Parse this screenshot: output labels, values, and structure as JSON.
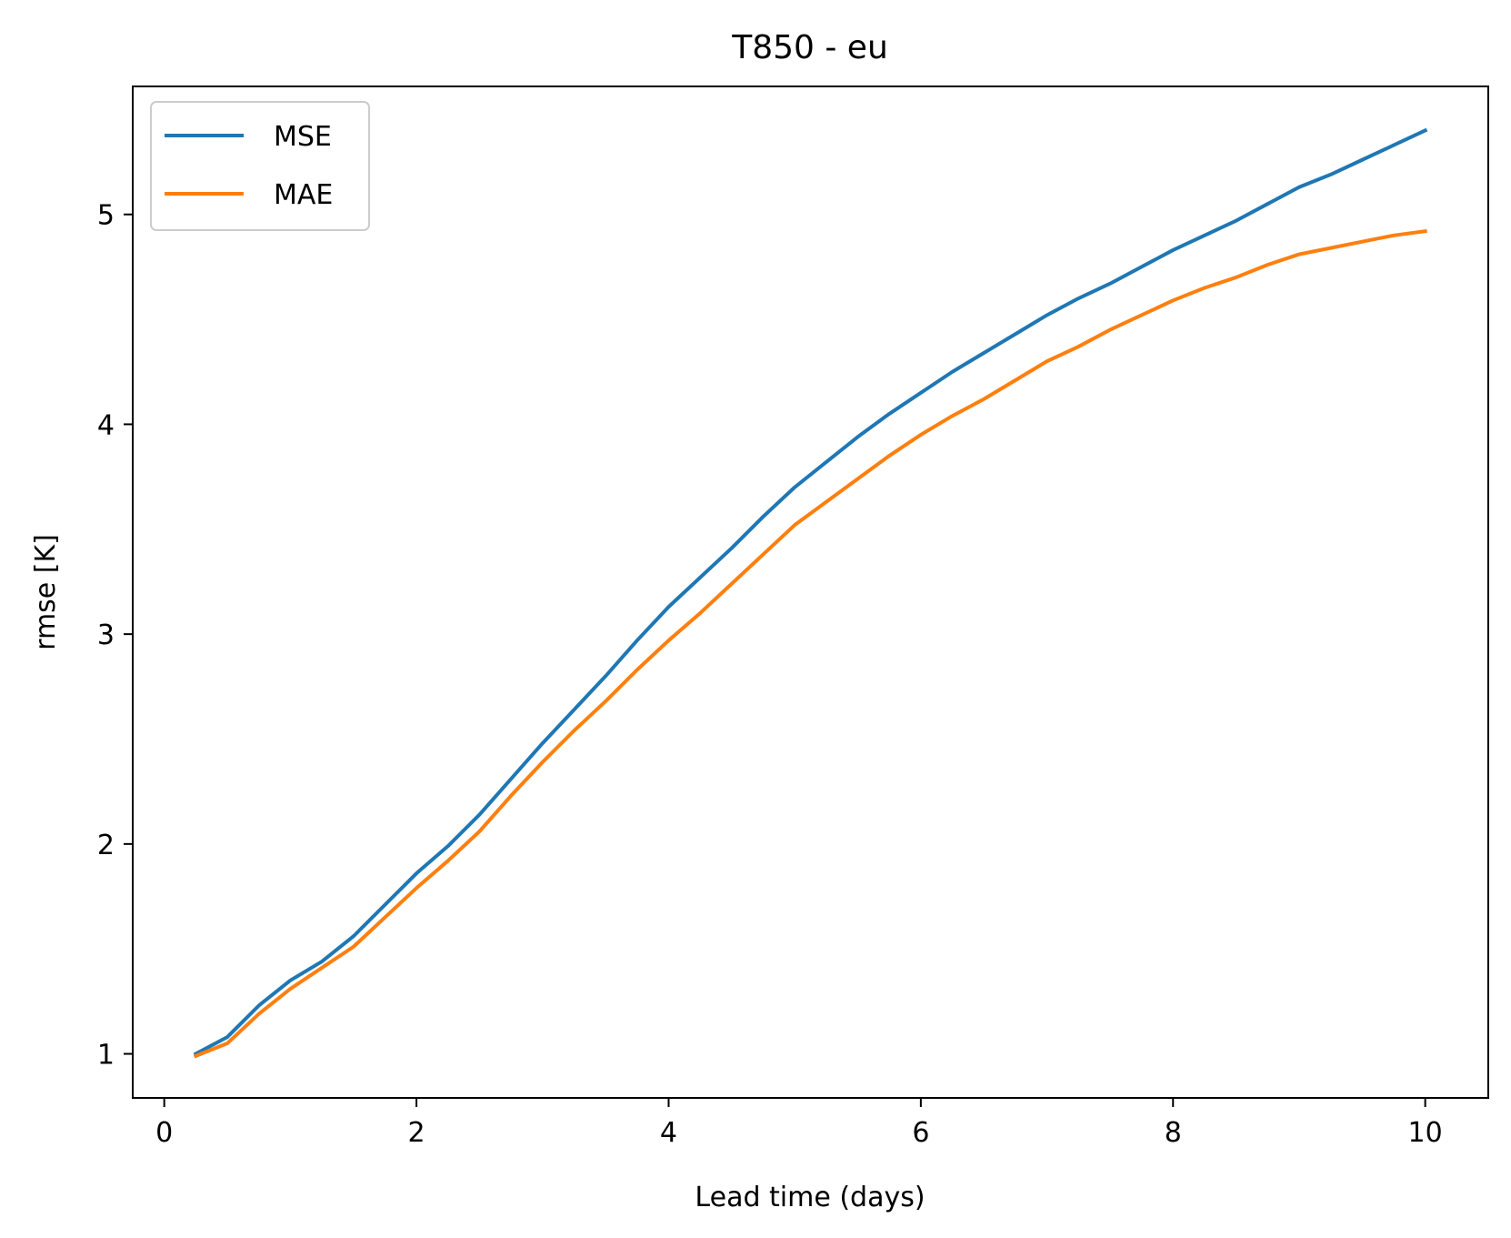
{
  "chart_data": {
    "type": "line",
    "title": "T850 - eu",
    "xlabel": "Lead time (days)",
    "ylabel": "rmse [K]",
    "xlim": [
      -0.25,
      10.5
    ],
    "ylim": [
      0.79,
      5.61
    ],
    "xticks": [
      0,
      2,
      4,
      6,
      8,
      10
    ],
    "yticks": [
      1,
      2,
      3,
      4,
      5
    ],
    "grid": false,
    "legend_position": "top-left",
    "x": [
      0.25,
      0.5,
      0.75,
      1.0,
      1.25,
      1.5,
      1.75,
      2.0,
      2.25,
      2.5,
      2.75,
      3.0,
      3.25,
      3.5,
      3.75,
      4.0,
      4.25,
      4.5,
      4.75,
      5.0,
      5.25,
      5.5,
      5.75,
      6.0,
      6.25,
      6.5,
      6.75,
      7.0,
      7.25,
      7.5,
      7.75,
      8.0,
      8.25,
      8.5,
      8.75,
      9.0,
      9.25,
      9.5,
      9.75,
      10.0
    ],
    "series": [
      {
        "name": "MSE",
        "color": "#1f77b4",
        "values": [
          1.0,
          1.08,
          1.23,
          1.35,
          1.44,
          1.56,
          1.71,
          1.86,
          1.99,
          2.14,
          2.31,
          2.48,
          2.64,
          2.8,
          2.97,
          3.13,
          3.27,
          3.41,
          3.56,
          3.7,
          3.82,
          3.94,
          4.05,
          4.15,
          4.25,
          4.34,
          4.43,
          4.52,
          4.6,
          4.67,
          4.75,
          4.83,
          4.9,
          4.97,
          5.05,
          5.13,
          5.19,
          5.26,
          5.33,
          5.4
        ]
      },
      {
        "name": "MAE",
        "color": "#ff7f0e",
        "values": [
          0.99,
          1.05,
          1.19,
          1.31,
          1.41,
          1.51,
          1.65,
          1.79,
          1.92,
          2.06,
          2.23,
          2.39,
          2.54,
          2.68,
          2.83,
          2.97,
          3.1,
          3.24,
          3.38,
          3.52,
          3.63,
          3.74,
          3.85,
          3.95,
          4.04,
          4.12,
          4.21,
          4.3,
          4.37,
          4.45,
          4.52,
          4.59,
          4.65,
          4.7,
          4.76,
          4.81,
          4.84,
          4.87,
          4.9,
          4.92
        ]
      }
    ]
  }
}
